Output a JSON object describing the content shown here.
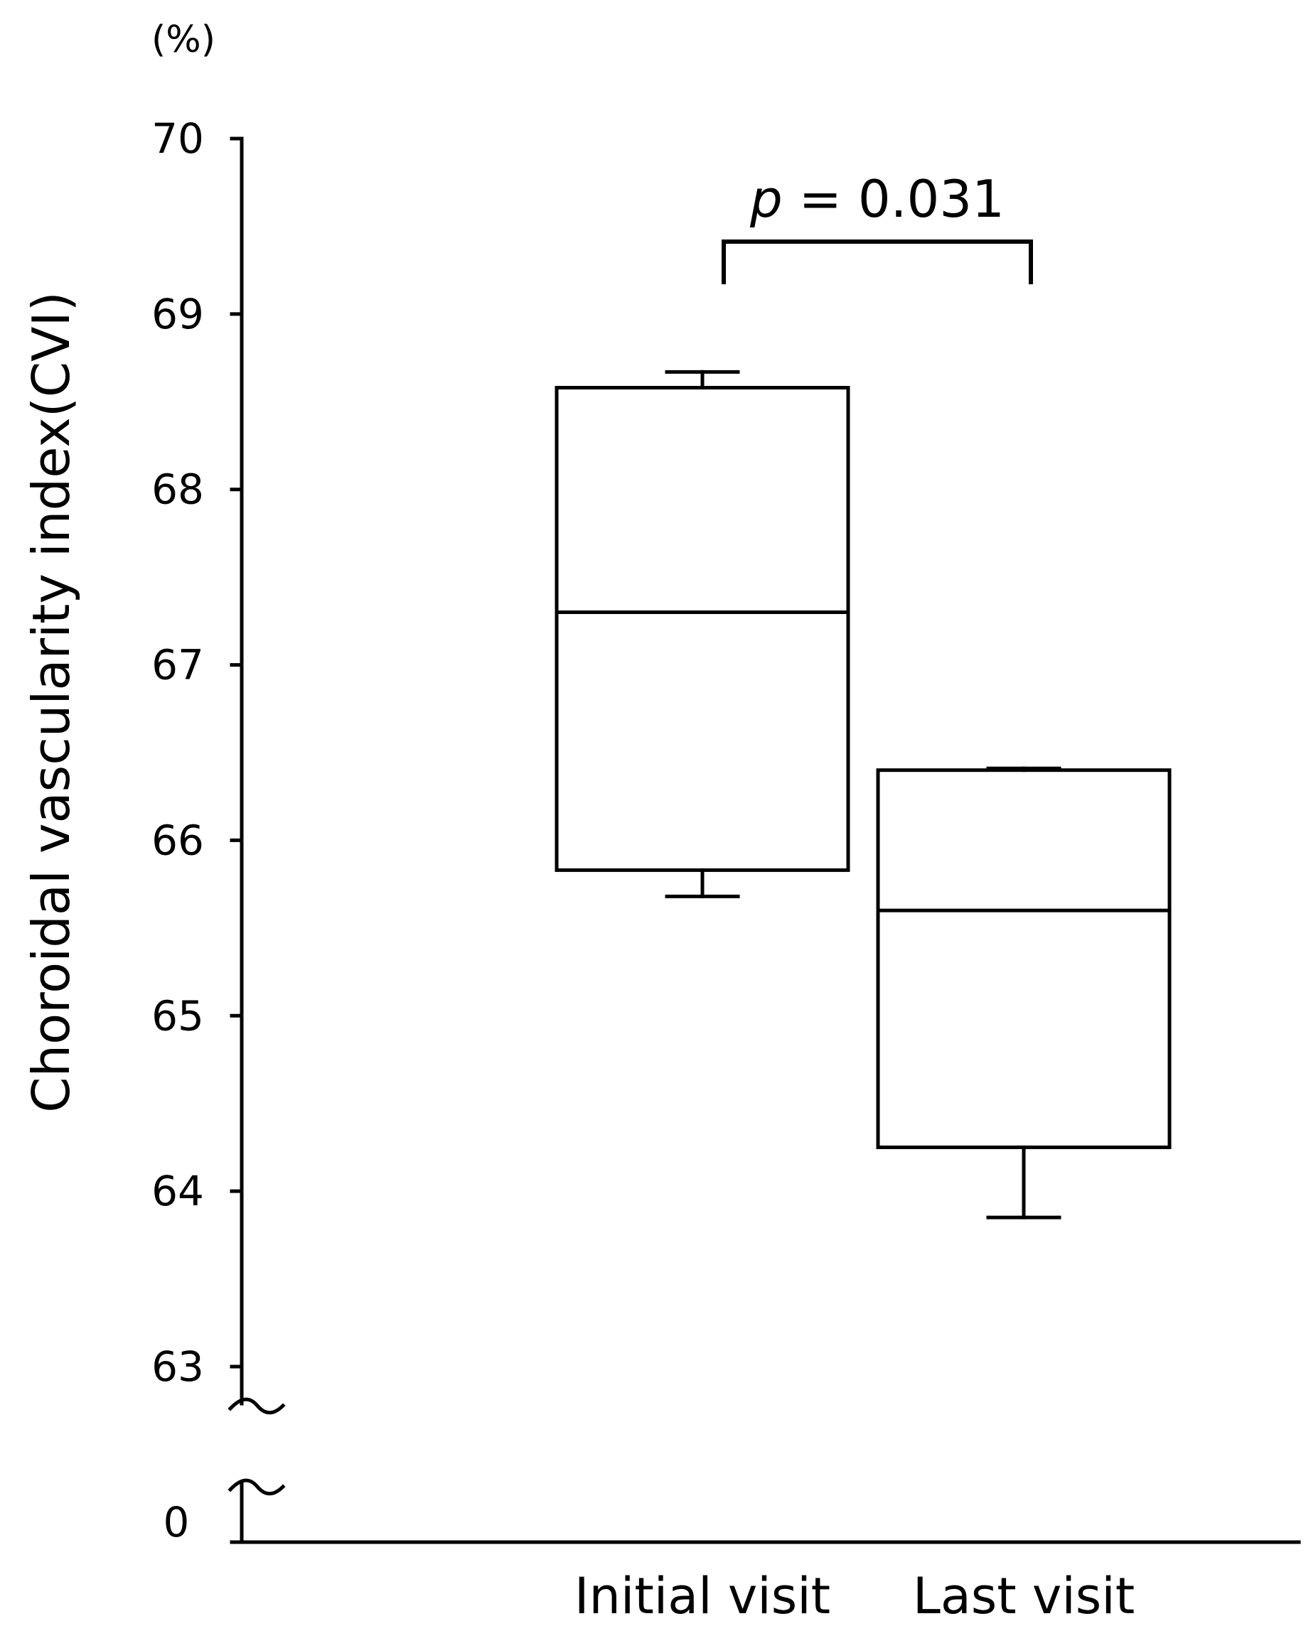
{
  "chart_data": {
    "type": "box",
    "unit_label": "(%)",
    "ylabel": "Choroidal vascularity index(CVI)",
    "xlabel": "",
    "categories": [
      "Initial visit",
      "Last visit"
    ],
    "y_ticks": [
      "70",
      "69",
      "68",
      "67",
      "66",
      "65",
      "64",
      "63"
    ],
    "y_tick_values": [
      70,
      69,
      68,
      67,
      66,
      65,
      64,
      63
    ],
    "zero_label": "0",
    "ylim": [
      63,
      70
    ],
    "axis_break": true,
    "boxes": [
      {
        "category": "Initial visit",
        "whisker_low": 65.68,
        "q1": 65.83,
        "median": 67.3,
        "q3": 68.58,
        "whisker_high": 68.67
      },
      {
        "category": "Last visit",
        "whisker_low": 63.85,
        "q1": 64.25,
        "median": 65.6,
        "q3": 66.4,
        "whisker_high": 66.41
      }
    ],
    "annotation": {
      "italic_part": "p",
      "rest": " = 0.031",
      "between": [
        "Initial visit",
        "Last visit"
      ]
    },
    "grid": false,
    "legend": "none"
  }
}
